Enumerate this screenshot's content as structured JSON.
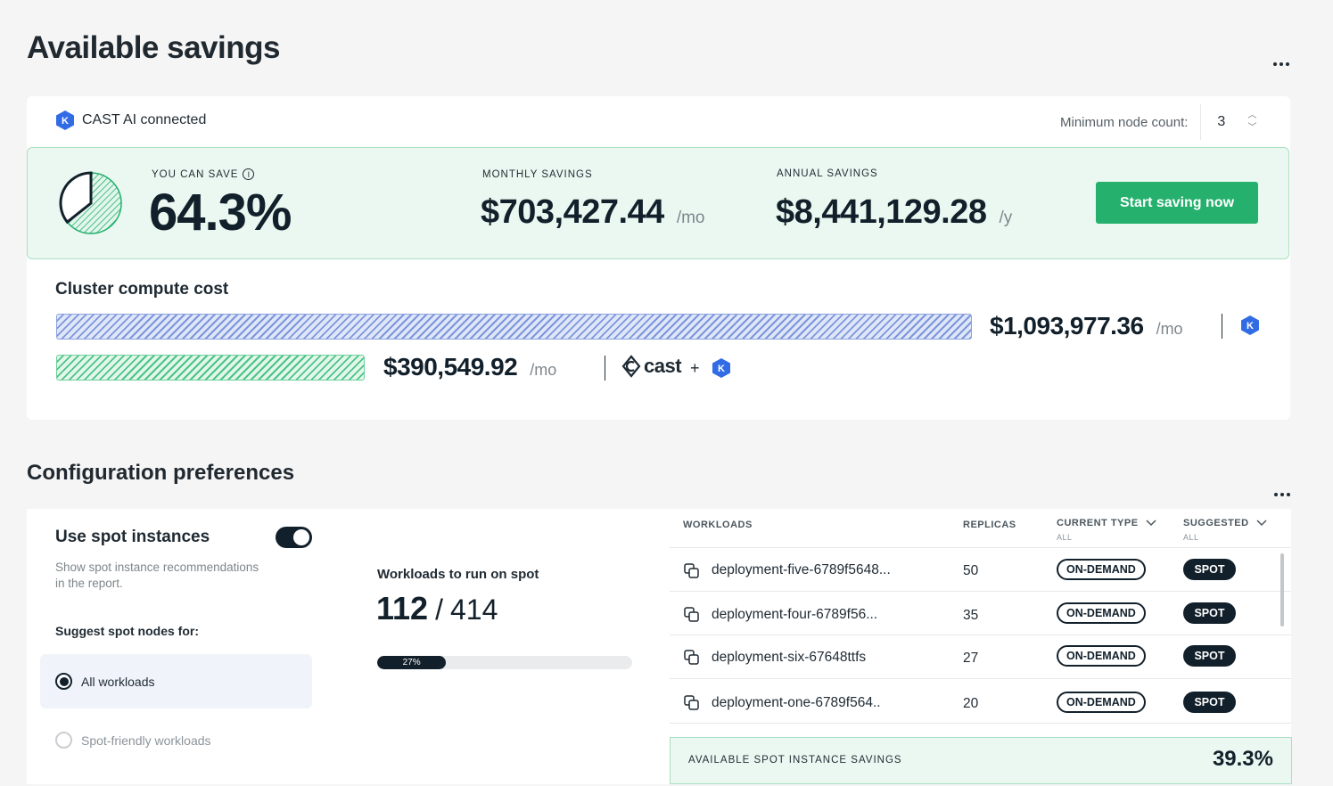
{
  "header": {
    "title": "Available savings"
  },
  "connection": {
    "label": "CAST AI connected"
  },
  "min_node": {
    "label": "Minimum node count:",
    "value": "3",
    "up": "︿",
    "down": "﹀"
  },
  "savings": {
    "you_can_save_label": "YOU CAN SAVE",
    "info_glyph": "i",
    "percent": "64.3%",
    "percent_value": 64.3,
    "monthly_label": "MONTHLY SAVINGS",
    "monthly_value": "$703,427.44",
    "monthly_unit": "/mo",
    "annual_label": "ANNUAL SAVINGS",
    "annual_value": "$8,441,129.28",
    "annual_unit": "/y",
    "cta": "Start saving now"
  },
  "cluster_cost": {
    "title": "Cluster compute cost",
    "current_value": "$1,093,977.36",
    "current_unit": "/mo",
    "optimized_value": "$390,549.92",
    "optimized_unit": "/mo",
    "cast_text": "cast",
    "plus": "+"
  },
  "config": {
    "title": "Configuration preferences",
    "spot": {
      "title": "Use spot instances",
      "description": "Show spot instance recommendations in the report.",
      "suggest_label": "Suggest spot nodes for:",
      "options": [
        "All workloads",
        "Spot-friendly workloads"
      ],
      "selected": "All workloads"
    },
    "workloads_on_spot": {
      "label": "Workloads to run on spot",
      "count": "112",
      "separator": "/",
      "total": "414",
      "percent": "27%",
      "percent_value": 27
    },
    "table": {
      "headers": {
        "workloads": "WORKLOADS",
        "replicas": "REPLICAS",
        "current_type": "CURRENT TYPE",
        "current_type_filter": "ALL",
        "suggested": "SUGGESTED",
        "suggested_filter": "ALL"
      },
      "rows": [
        {
          "name": "deployment-five-6789f5648...",
          "replicas": "50",
          "current": "ON-DEMAND",
          "suggested": "SPOT"
        },
        {
          "name": "deployment-four-6789f56...",
          "replicas": "35",
          "current": "ON-DEMAND",
          "suggested": "SPOT"
        },
        {
          "name": "deployment-six-67648ttfs",
          "replicas": "27",
          "current": "ON-DEMAND",
          "suggested": "SPOT"
        },
        {
          "name": "deployment-one-6789f564..",
          "replicas": "20",
          "current": "ON-DEMAND",
          "suggested": "SPOT"
        }
      ]
    },
    "footer": {
      "label": "AVAILABLE SPOT INSTANCE SAVINGS",
      "value": "39.3%"
    }
  },
  "colors": {
    "accent_green": "#25b06e",
    "dark": "#12202b",
    "k8s_blue": "#326ce5"
  },
  "icons": {
    "connected": "kubernetes-icon",
    "copy": "copy-icon",
    "more": "more-horizontal-icon"
  }
}
